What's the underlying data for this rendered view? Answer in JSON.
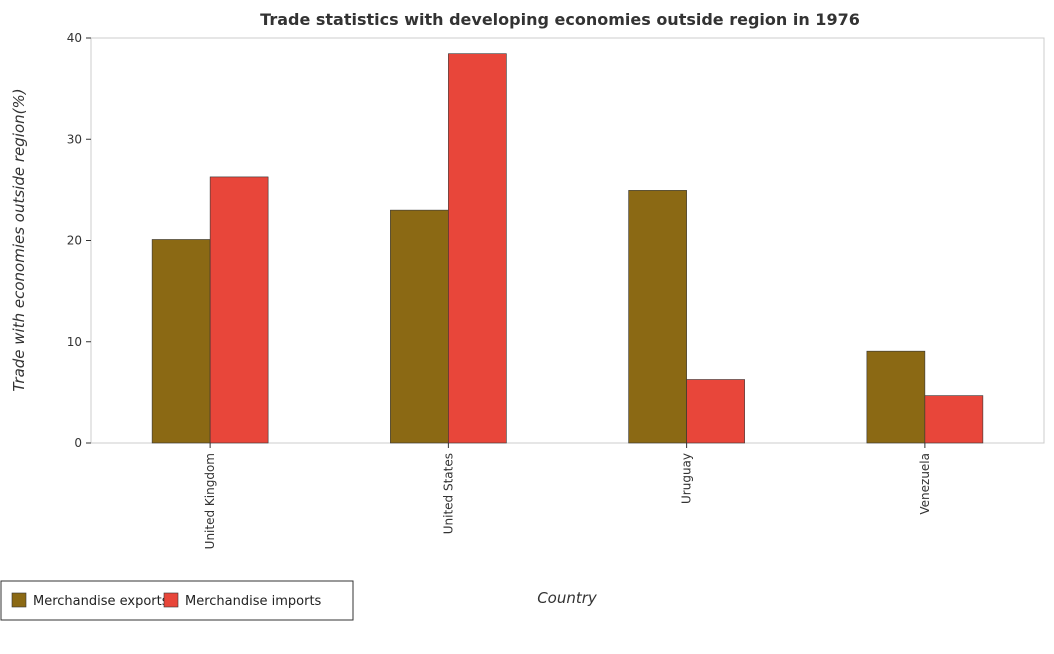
{
  "chart_data": {
    "type": "bar",
    "title": "Trade statistics with developing economies outside region in 1976",
    "xlabel": "Country",
    "ylabel": "Trade with economies outside region(%)",
    "categories": [
      "United Kingdom",
      "United States",
      "Uruguay",
      "Venezuela"
    ],
    "series": [
      {
        "name": "Merchandise exports",
        "color": "#8b6914",
        "values": [
          20.1,
          23.0,
          24.95,
          9.07
        ]
      },
      {
        "name": "Merchandise imports",
        "color": "#e8463a",
        "values": [
          26.28,
          38.45,
          6.27,
          4.68
        ]
      }
    ],
    "ylim": [
      0,
      40
    ],
    "yticks": [
      0,
      10,
      20,
      30,
      40
    ],
    "grid": false,
    "legend_position": "bottom-left"
  }
}
